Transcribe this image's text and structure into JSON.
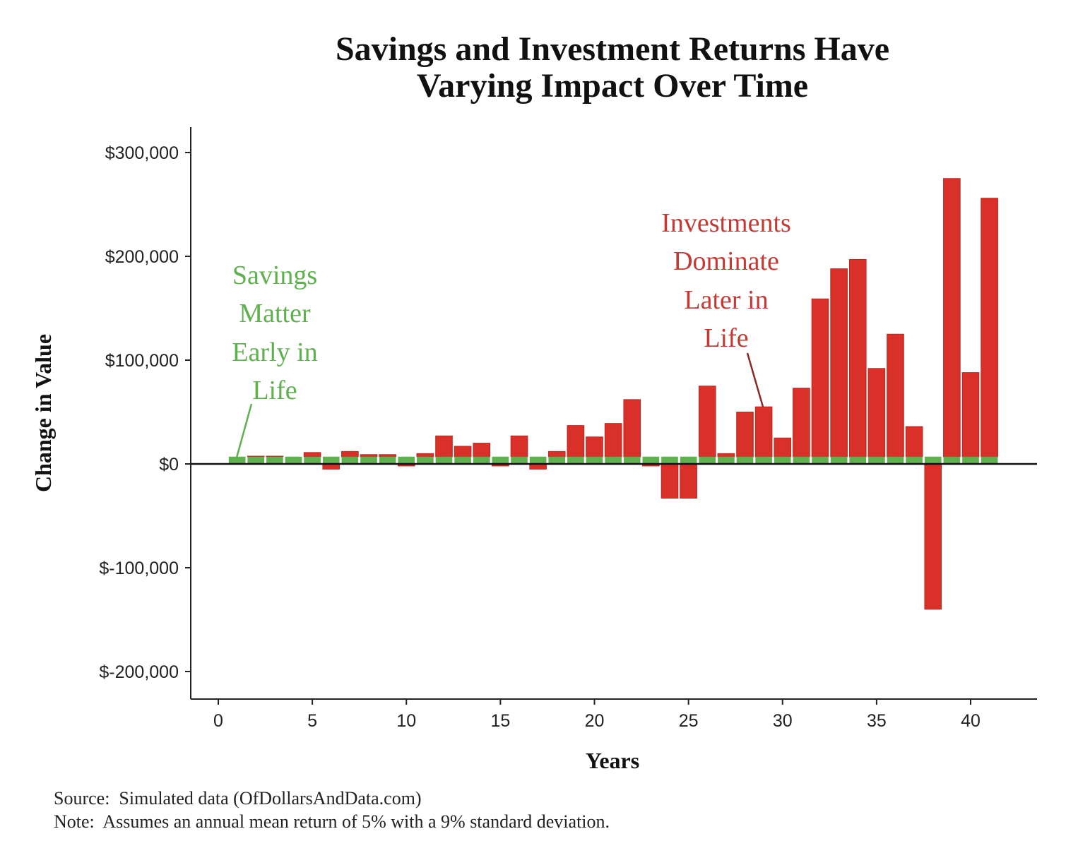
{
  "chart_data": {
    "type": "bar",
    "stacked": true,
    "title": [
      "Savings and Investment Returns Have",
      "Varying Impact Over Time"
    ],
    "xlabel": "Years",
    "ylabel": "Change in Value",
    "xlim": [
      -1.5,
      43.5
    ],
    "ylim": [
      -225000,
      325000
    ],
    "x_ticks": [
      0,
      5,
      10,
      15,
      20,
      25,
      30,
      35,
      40
    ],
    "y_ticks": [
      300000,
      200000,
      100000,
      0,
      -100000,
      -200000
    ],
    "y_tick_labels": [
      "$300,000",
      "$200,000",
      "$100,000",
      "$0",
      "$-100,000",
      "$-200,000"
    ],
    "x": [
      1,
      2,
      3,
      4,
      5,
      6,
      7,
      8,
      9,
      10,
      11,
      12,
      13,
      14,
      15,
      16,
      17,
      18,
      19,
      20,
      21,
      22,
      23,
      24,
      25,
      26,
      27,
      28,
      29,
      30,
      31,
      32,
      33,
      34,
      35,
      36,
      37,
      38,
      39,
      40,
      41
    ],
    "series": [
      {
        "name": "Savings",
        "color": "#5fb04f",
        "values": [
          7000,
          7000,
          7000,
          7000,
          7000,
          7000,
          7000,
          7000,
          7000,
          7000,
          7000,
          7000,
          7000,
          7000,
          7000,
          7000,
          7000,
          7000,
          7000,
          7000,
          7000,
          7000,
          7000,
          7000,
          7000,
          7000,
          7000,
          7000,
          7000,
          7000,
          7000,
          7000,
          7000,
          7000,
          7000,
          7000,
          7000,
          7000,
          7000,
          7000,
          7000
        ]
      },
      {
        "name": "Investment Returns",
        "color": "#d9302a",
        "values": [
          0,
          500,
          500,
          0,
          4000,
          -5000,
          5000,
          2000,
          2000,
          -2000,
          3000,
          20000,
          10000,
          13000,
          -2000,
          20000,
          -5000,
          5000,
          30000,
          19000,
          32000,
          55000,
          -2000,
          -33000,
          -33000,
          68000,
          3000,
          43000,
          48000,
          18000,
          66000,
          152000,
          181000,
          190000,
          85000,
          118000,
          29000,
          -140000,
          268000,
          81000,
          249000
        ]
      }
    ],
    "annotations": [
      {
        "lines": [
          "Savings",
          "Matter",
          "Early in",
          "Life"
        ],
        "color": "#5fb04f",
        "points_to_year": 1
      },
      {
        "lines": [
          "Investments",
          "Dominate",
          "Later in",
          "Life"
        ],
        "color": "#c23a34",
        "points_to_year": 29
      }
    ],
    "footnotes": [
      "Source:  Simulated data (OfDollarsAndData.com)",
      "Note:  Assumes an annual mean return of 5% with a 9% standard deviation."
    ]
  }
}
